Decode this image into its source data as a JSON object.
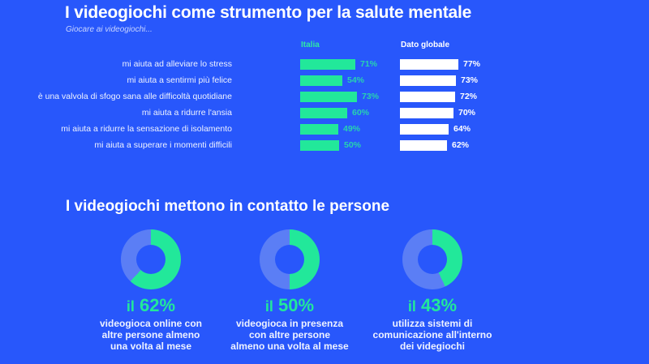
{
  "header": {
    "title": "I videogiochi come strumento per la salute mentale",
    "subtitle": "Giocare ai videogiochi..."
  },
  "columns": {
    "italia": "Italia",
    "globale": "Dato globale"
  },
  "rows": [
    {
      "label": "mi aiuta ad alleviare lo stress",
      "italia": 71,
      "italia_text": "71%",
      "globale": 77,
      "globale_text": "77%"
    },
    {
      "label": "mi aiuta a sentirmi più felice",
      "italia": 54,
      "italia_text": "54%",
      "globale": 73,
      "globale_text": "73%"
    },
    {
      "label": "è una valvola di sfogo sana alle difficoltà quotidiane",
      "italia": 73,
      "italia_text": "73%",
      "globale": 72,
      "globale_text": "72%"
    },
    {
      "label": "mi aiuta a ridurre l'ansia",
      "italia": 60,
      "italia_text": "60%",
      "globale": 70,
      "globale_text": "70%"
    },
    {
      "label": "mi aiuta a ridurre la sensazione di isolamento",
      "italia": 49,
      "italia_text": "49%",
      "globale": 64,
      "globale_text": "64%"
    },
    {
      "label": "mi aiuta a superare i momenti difficili",
      "italia": 50,
      "italia_text": "50%",
      "globale": 62,
      "globale_text": "62%"
    }
  ],
  "section2": {
    "title": "I videogiochi mettono in contatto le persone",
    "stats": [
      {
        "prefix": "il",
        "value": 62,
        "value_text": "62%",
        "lines": [
          "videogioca online con",
          "altre persone almeno",
          "una volta al mese"
        ]
      },
      {
        "prefix": "il",
        "value": 50,
        "value_text": "50%",
        "lines": [
          "videogioca in presenza",
          "con altre persone",
          "almeno una volta al mese"
        ]
      },
      {
        "prefix": "il",
        "value": 43,
        "value_text": "43%",
        "lines": [
          "utilizza sistemi di",
          "comunicazione all'interno",
          "dei videgiochi"
        ]
      }
    ]
  },
  "colors": {
    "background": "#2857fb",
    "italia_bar": "#22e89a",
    "italia_value": "#27d3b0",
    "global_bar": "#ffffff",
    "donut_rest": "#5b7ef5",
    "donut_fill": "#22e89a"
  },
  "chart_data": [
    {
      "type": "bar",
      "orientation": "horizontal",
      "title": "I videogiochi come strumento per la salute mentale",
      "subtitle": "Giocare ai videogiochi...",
      "categories": [
        "mi aiuta ad alleviare lo stress",
        "mi aiuta a sentirmi più felice",
        "è una valvola di sfogo sana alle difficoltà quotidiane",
        "mi aiuta a ridurre l'ansia",
        "mi aiuta a ridurre la sensazione di isolamento",
        "mi aiuta a superare i momenti difficili"
      ],
      "series": [
        {
          "name": "Italia",
          "values": [
            71,
            54,
            73,
            60,
            49,
            50
          ]
        },
        {
          "name": "Dato globale",
          "values": [
            77,
            73,
            72,
            70,
            64,
            62
          ]
        }
      ],
      "unit": "%",
      "grid": false
    },
    {
      "type": "pie",
      "variant": "donut",
      "title": "I videogiochi mettono in contatto le persone",
      "charts": [
        {
          "label": "videogioca online con altre persone almeno una volta al mese",
          "value": 62
        },
        {
          "label": "videogioca in presenza con altre persone almeno una volta al mese",
          "value": 50
        },
        {
          "label": "utilizza sistemi di comunicazione all'interno dei videgiochi",
          "value": 43
        }
      ],
      "unit": "%"
    }
  ]
}
